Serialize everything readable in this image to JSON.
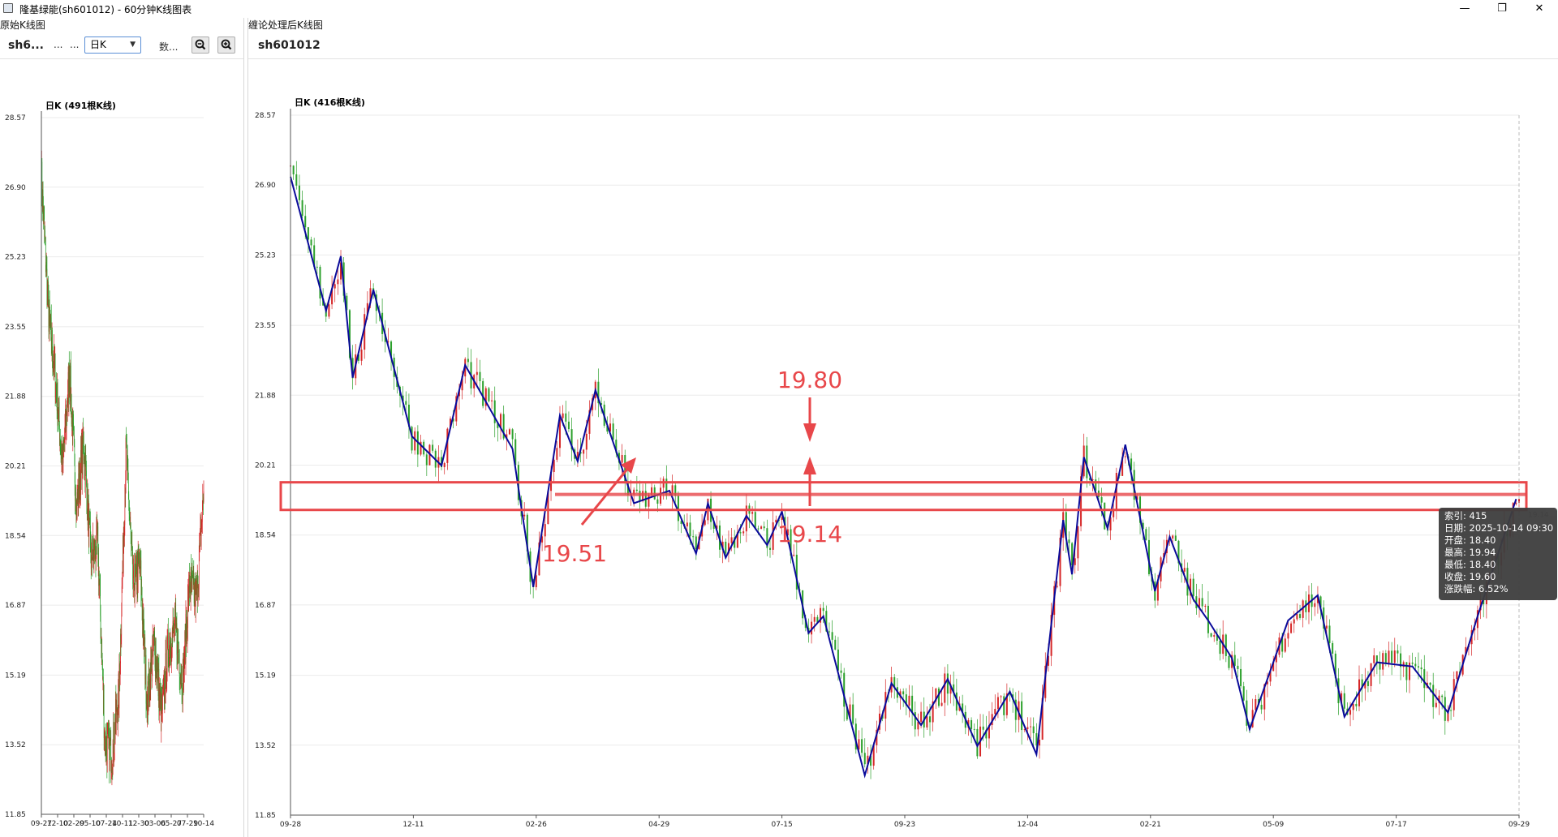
{
  "window": {
    "title": "隆基绿能(sh601012) - 60分钟K线图表",
    "minimize": "—",
    "maximize": "❐",
    "close": "✕"
  },
  "left_pane": {
    "label": "原始K线图",
    "code": "sh6...",
    "ellipsis1": "...",
    "ellipsis2": "...",
    "period_value": "日K",
    "data_label": "数...",
    "zoom_out_icon": "zoom-out-icon",
    "zoom_in_icon": "zoom-in-icon"
  },
  "right_pane": {
    "label": "缠论处理后K线图",
    "code": "sh601012"
  },
  "tooltip": {
    "index": "索引: 415",
    "date": "日期: 2025-10-14 09:30",
    "open": "开盘: 18.40",
    "high": "最高: 19.94",
    "low": "最低: 18.40",
    "close": "收盘: 19.60",
    "change": "涨跌幅: 6.52%"
  },
  "annotations": {
    "upper_value": "19.80",
    "lower_value": "19.14",
    "left_value": "19.51",
    "last_price": "19.14"
  },
  "colors": {
    "up": "#d62728",
    "down": "#2ca02c",
    "stroke_line": "#0a0a9a",
    "annotation": "#e8474a"
  },
  "chart_data": [
    {
      "type": "candlestick",
      "title": "日K (491根K线)",
      "y_ticks": [
        "28.57",
        "26.90",
        "25.23",
        "23.55",
        "21.88",
        "20.21",
        "18.54",
        "16.87",
        "15.19",
        "13.52",
        "11.85"
      ],
      "ylim": [
        11.85,
        28.57
      ],
      "x_ticks": [
        "09-27",
        "12-10",
        "02-29",
        "05-10",
        "07-24",
        "10-11",
        "12-30",
        "03-06",
        "05-27",
        "07-29",
        "10-14"
      ],
      "count": 491,
      "close_path": [
        27.2,
        23.9,
        22.3,
        20.2,
        22.5,
        19.2,
        20.8,
        18.0,
        18.3,
        13.6,
        13.3,
        14.8,
        20.6,
        17.3,
        17.8,
        14.5,
        16.0,
        14.2,
        15.9,
        16.3,
        15.0,
        17.4,
        17.0,
        19.6
      ],
      "grid": true
    },
    {
      "type": "candlestick",
      "title": "日K (416根K线)",
      "y_ticks": [
        "28.57",
        "26.90",
        "25.23",
        "23.55",
        "21.88",
        "20.21",
        "18.54",
        "16.87",
        "15.19",
        "13.52",
        "11.85"
      ],
      "ylim": [
        11.85,
        28.57
      ],
      "x_ticks": [
        "09-28",
        "12-11",
        "02-26",
        "04-29",
        "07-15",
        "09-23",
        "12-04",
        "02-21",
        "05-09",
        "07-17",
        "09-29"
      ],
      "count": 416,
      "stroke_segments": [
        [
          0,
          27.1
        ],
        [
          12,
          23.9
        ],
        [
          17,
          25.2
        ],
        [
          21,
          22.3
        ],
        [
          28,
          24.4
        ],
        [
          41,
          20.9
        ],
        [
          51,
          20.2
        ],
        [
          59,
          22.6
        ],
        [
          75,
          20.6
        ],
        [
          82,
          17.3
        ],
        [
          91,
          21.4
        ],
        [
          97,
          20.3
        ],
        [
          103,
          22.0
        ],
        [
          116,
          19.3
        ],
        [
          128,
          19.6
        ],
        [
          137,
          18.1
        ],
        [
          141,
          19.3
        ],
        [
          147,
          18.0
        ],
        [
          154,
          19.0
        ],
        [
          161,
          18.3
        ],
        [
          166,
          19.1
        ],
        [
          175,
          16.2
        ],
        [
          180,
          16.6
        ],
        [
          194,
          12.8
        ],
        [
          203,
          15.0
        ],
        [
          213,
          14.0
        ],
        [
          222,
          15.1
        ],
        [
          232,
          13.5
        ],
        [
          243,
          14.8
        ],
        [
          252,
          13.3
        ],
        [
          261,
          18.9
        ],
        [
          264,
          17.6
        ],
        [
          268,
          20.4
        ],
        [
          276,
          18.7
        ],
        [
          282,
          20.7
        ],
        [
          292,
          17.2
        ],
        [
          297,
          18.5
        ],
        [
          305,
          17.0
        ],
        [
          310,
          16.5
        ],
        [
          318,
          15.6
        ],
        [
          324,
          13.9
        ],
        [
          337,
          16.5
        ],
        [
          347,
          17.1
        ],
        [
          356,
          14.2
        ],
        [
          367,
          15.5
        ],
        [
          379,
          15.4
        ],
        [
          391,
          14.3
        ],
        [
          401,
          16.6
        ],
        [
          414,
          19.4
        ]
      ],
      "annotation_box": [
        19.14,
        19.8
      ],
      "annotation_mid": 19.51,
      "last_price": 19.14,
      "grid": true
    }
  ]
}
